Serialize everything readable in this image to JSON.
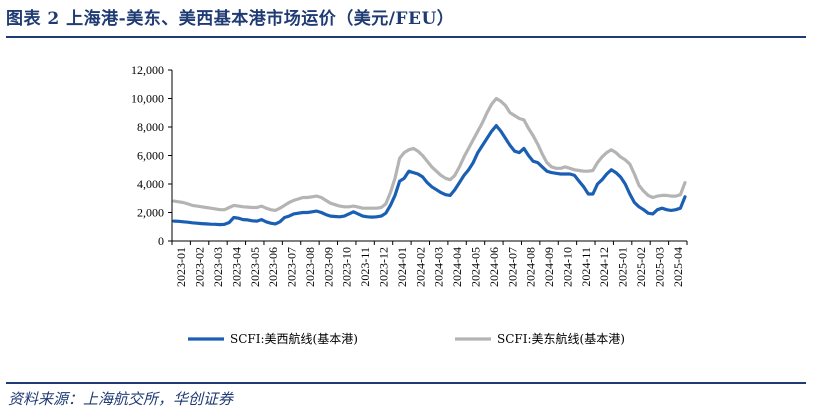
{
  "header": {
    "title": "图表 2   上海港-美东、美西基本港市场运价（美元/FEU）"
  },
  "footer": {
    "source": "资料来源：上海航交所，华创证券"
  },
  "chart_data": {
    "type": "line",
    "title": "",
    "xlabel": "",
    "ylabel": "",
    "ylim": [
      0,
      12000
    ],
    "yticks": [
      0,
      2000,
      4000,
      6000,
      8000,
      10000,
      12000
    ],
    "ytick_labels": [
      "0",
      "2,000",
      "4,000",
      "6,000",
      "8,000",
      "10,000",
      "12,000"
    ],
    "grid": false,
    "legend": "bottom",
    "xtick_labels": [
      "2023-01",
      "2023-02",
      "2023-03",
      "2023-04",
      "2023-05",
      "2023-06",
      "2023-07",
      "2023-08",
      "2023-09",
      "2023-10",
      "2023-11",
      "2023-12",
      "2024-01",
      "2024-02",
      "2024-03",
      "2024-04",
      "2024-05",
      "2024-06",
      "2024-07",
      "2024-08",
      "2024-09",
      "2024-10",
      "2024-11",
      "2024-12",
      "2025-01",
      "2025-02",
      "2025-03",
      "2025-04"
    ],
    "series": [
      {
        "name": "SCFI:美西航线(基本港)",
        "color": "#1a5fb4",
        "values": [
          1400,
          1380,
          1350,
          1320,
          1280,
          1250,
          1220,
          1200,
          1180,
          1170,
          1150,
          1170,
          1300,
          1650,
          1600,
          1500,
          1480,
          1420,
          1400,
          1500,
          1350,
          1250,
          1200,
          1350,
          1650,
          1750,
          1900,
          1950,
          2000,
          2000,
          2050,
          2100,
          2000,
          1850,
          1750,
          1720,
          1700,
          1750,
          1900,
          2050,
          1900,
          1750,
          1700,
          1680,
          1700,
          1750,
          1950,
          2500,
          3200,
          4200,
          4400,
          4900,
          4800,
          4700,
          4500,
          4100,
          3800,
          3600,
          3400,
          3250,
          3200,
          3600,
          4100,
          4600,
          5000,
          5500,
          6200,
          6700,
          7200,
          7700,
          8100,
          7700,
          7200,
          6700,
          6300,
          6200,
          6500,
          6000,
          5600,
          5500,
          5200,
          4900,
          4800,
          4750,
          4700,
          4700,
          4700,
          4600,
          4200,
          3800,
          3300,
          3300,
          4000,
          4300,
          4700,
          5000,
          4800,
          4500,
          4000,
          3300,
          2700,
          2400,
          2200,
          1950,
          1900,
          2200,
          2300,
          2200,
          2150,
          2200,
          2300,
          3100
        ]
      },
      {
        "name": "SCFI:美东航线(基本港)",
        "color": "#b4b4b4",
        "values": [
          2800,
          2750,
          2700,
          2600,
          2500,
          2450,
          2400,
          2350,
          2300,
          2250,
          2200,
          2200,
          2350,
          2500,
          2450,
          2400,
          2380,
          2350,
          2350,
          2450,
          2300,
          2200,
          2150,
          2300,
          2500,
          2700,
          2850,
          2950,
          3050,
          3050,
          3100,
          3150,
          3050,
          2850,
          2650,
          2550,
          2450,
          2400,
          2400,
          2450,
          2380,
          2300,
          2300,
          2300,
          2300,
          2350,
          2600,
          3400,
          4400,
          5800,
          6200,
          6400,
          6500,
          6300,
          6000,
          5600,
          5200,
          4900,
          4600,
          4400,
          4300,
          4600,
          5200,
          5900,
          6500,
          7100,
          7700,
          8300,
          9000,
          9600,
          10000,
          9800,
          9500,
          9000,
          8800,
          8600,
          8500,
          7900,
          7400,
          6800,
          6100,
          5500,
          5200,
          5100,
          5100,
          5200,
          5100,
          5000,
          4950,
          4900,
          4900,
          4950,
          5500,
          5900,
          6200,
          6400,
          6200,
          5900,
          5700,
          5400,
          4700,
          3900,
          3500,
          3200,
          3050,
          3150,
          3200,
          3200,
          3150,
          3150,
          3250,
          4100
        ]
      }
    ]
  }
}
